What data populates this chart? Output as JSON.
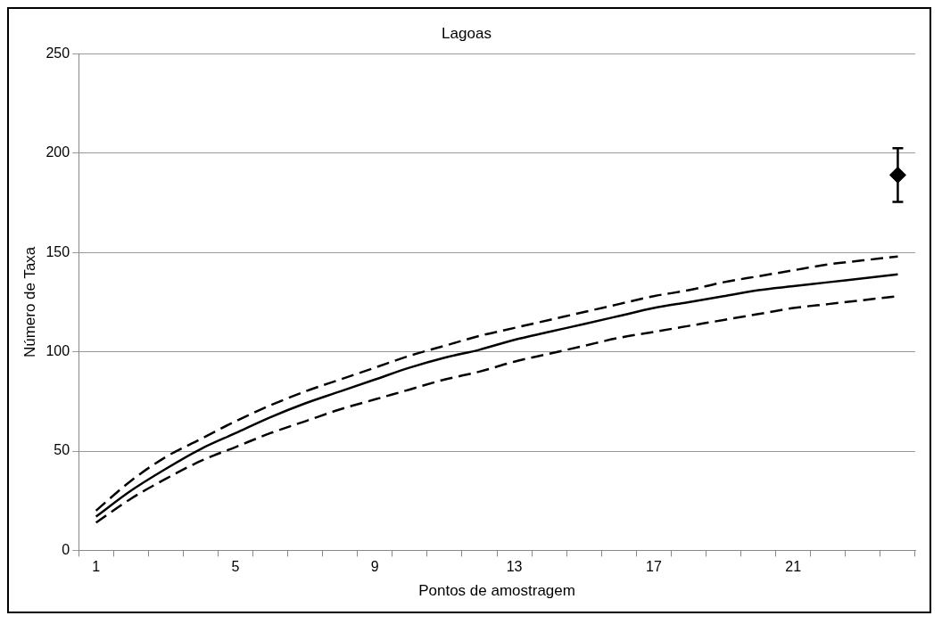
{
  "chart_data": {
    "type": "line",
    "title": "Lagoas",
    "xlabel": "Pontos de amostragem",
    "ylabel": "Número de Taxa",
    "categories": [
      "1",
      null,
      null,
      null,
      "5",
      null,
      null,
      null,
      "9",
      null,
      null,
      null,
      "13",
      null,
      null,
      null,
      "17",
      null,
      null,
      null,
      "21",
      null,
      null,
      null
    ],
    "series": [
      {
        "color": "#000000",
        "line_style": "dashed",
        "marker": "none",
        "values": [
          20,
          35,
          47,
          56,
          65,
          73,
          80,
          86,
          92,
          98,
          103,
          108,
          112,
          116,
          120,
          124,
          128,
          131,
          135,
          138,
          141,
          144,
          146,
          148
        ]
      },
      {
        "color": "#000000",
        "line_style": "solid",
        "marker": "none",
        "values": [
          17,
          30,
          41,
          51,
          59,
          67,
          74,
          80,
          86,
          92,
          97,
          101,
          106,
          110,
          114,
          118,
          122,
          125,
          128,
          131,
          133,
          135,
          137,
          139
        ]
      },
      {
        "color": "#000000",
        "line_style": "dashed",
        "marker": "none",
        "values": [
          14,
          26,
          36,
          45,
          52,
          59,
          65,
          71,
          76,
          81,
          86,
          90,
          95,
          99,
          103,
          107,
          110,
          113,
          116,
          119,
          122,
          124,
          126,
          128
        ]
      },
      {
        "type": "scatter",
        "color": "#000000",
        "marker": "diamond",
        "values": [
          null,
          null,
          null,
          null,
          null,
          null,
          null,
          null,
          null,
          null,
          null,
          null,
          null,
          null,
          null,
          null,
          null,
          null,
          null,
          null,
          null,
          null,
          null,
          189
        ],
        "errors": [
          null,
          null,
          null,
          null,
          null,
          null,
          null,
          null,
          null,
          null,
          null,
          null,
          null,
          null,
          null,
          null,
          null,
          null,
          null,
          null,
          null,
          null,
          null,
          [
            175.5,
            202.5
          ]
        ]
      }
    ],
    "ylim": [
      0,
      250
    ],
    "yticks": [
      0,
      50,
      100,
      150,
      200,
      250
    ],
    "grid": "y",
    "legend": false
  }
}
